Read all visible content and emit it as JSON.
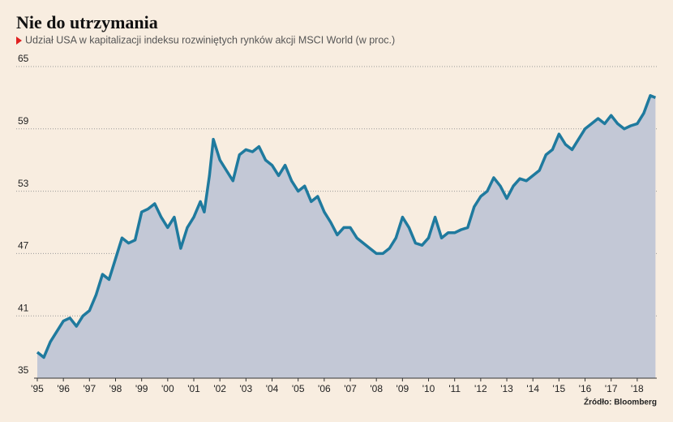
{
  "chart_data": {
    "type": "area",
    "title": "Nie do utrzymania",
    "subtitle": "Udział USA w kapitalizacji indeksu rozwiniętych rynków akcji MSCI World (w proc.)",
    "source": "Źródło: Bloomberg",
    "color": "#1f7a9e",
    "fill": "#c3c8d6",
    "grid": true,
    "x": [
      1995,
      1995.25,
      1995.5,
      1995.75,
      1996,
      1996.25,
      1996.5,
      1996.75,
      1997,
      1997.25,
      1997.5,
      1997.75,
      1998,
      1998.25,
      1998.5,
      1998.75,
      1999,
      1999.25,
      1999.5,
      1999.75,
      2000,
      2000.25,
      2000.5,
      2000.75,
      2001,
      2001.25,
      2001.4,
      2001.6,
      2001.75,
      2002,
      2002.25,
      2002.5,
      2002.75,
      2003,
      2003.25,
      2003.5,
      2003.75,
      2004,
      2004.25,
      2004.5,
      2004.75,
      2005,
      2005.25,
      2005.5,
      2005.75,
      2006,
      2006.25,
      2006.5,
      2006.75,
      2007,
      2007.25,
      2007.5,
      2007.75,
      2008,
      2008.25,
      2008.5,
      2008.75,
      2009,
      2009.25,
      2009.5,
      2009.75,
      2010,
      2010.25,
      2010.5,
      2010.75,
      2011,
      2011.25,
      2011.5,
      2011.75,
      2012,
      2012.25,
      2012.5,
      2012.75,
      2013,
      2013.25,
      2013.5,
      2013.75,
      2014,
      2014.25,
      2014.5,
      2014.75,
      2015,
      2015.25,
      2015.5,
      2015.75,
      2016,
      2016.25,
      2016.5,
      2016.75,
      2017,
      2017.25,
      2017.5,
      2017.75,
      2018,
      2018.25,
      2018.5,
      2018.7
    ],
    "values": [
      37.5,
      37,
      38.5,
      39.5,
      40.5,
      40.8,
      40,
      41,
      41.5,
      43,
      45,
      44.5,
      46.5,
      48.5,
      48,
      48.3,
      51,
      51.3,
      51.8,
      50.5,
      49.5,
      50.5,
      47.5,
      49.5,
      50.5,
      52,
      51,
      54.5,
      58,
      56,
      55,
      54,
      56.5,
      57,
      56.8,
      57.3,
      56,
      55.5,
      54.5,
      55.5,
      54,
      53,
      53.5,
      52,
      52.5,
      51,
      50,
      48.8,
      49.5,
      49.5,
      48.5,
      48,
      47.5,
      47,
      47,
      47.5,
      48.5,
      50.5,
      49.5,
      48,
      47.8,
      48.5,
      50.5,
      48.5,
      49,
      49,
      49.3,
      49.5,
      51.5,
      52.5,
      53,
      54.3,
      53.5,
      52.3,
      53.5,
      54.2,
      54,
      54.5,
      55,
      56.5,
      57,
      58.5,
      57.5,
      57,
      58,
      59,
      59.5,
      60,
      59.5,
      60.3,
      59.5,
      59,
      59.3,
      59.5,
      60.5,
      62.2,
      62
    ],
    "xlim": [
      1995,
      2018.75
    ],
    "ylim": [
      35,
      65
    ],
    "yticks": [
      35,
      41,
      47,
      53,
      59,
      65
    ],
    "xticks": [
      {
        "value": 1995,
        "label": "'95"
      },
      {
        "value": 1996,
        "label": "'96"
      },
      {
        "value": 1997,
        "label": "'97"
      },
      {
        "value": 1998,
        "label": "'98"
      },
      {
        "value": 1999,
        "label": "'99"
      },
      {
        "value": 2000,
        "label": "'00"
      },
      {
        "value": 2001,
        "label": "'01"
      },
      {
        "value": 2002,
        "label": "'02"
      },
      {
        "value": 2003,
        "label": "'03"
      },
      {
        "value": 2004,
        "label": "'04"
      },
      {
        "value": 2005,
        "label": "'05"
      },
      {
        "value": 2006,
        "label": "'06"
      },
      {
        "value": 2007,
        "label": "'07"
      },
      {
        "value": 2008,
        "label": "'08"
      },
      {
        "value": 2009,
        "label": "'09"
      },
      {
        "value": 2010,
        "label": "'10"
      },
      {
        "value": 2011,
        "label": "'11"
      },
      {
        "value": 2012,
        "label": "'12"
      },
      {
        "value": 2013,
        "label": "'13"
      },
      {
        "value": 2014,
        "label": "'14"
      },
      {
        "value": 2015,
        "label": "'15"
      },
      {
        "value": 2016,
        "label": "'16"
      },
      {
        "value": 2017,
        "label": "'17"
      },
      {
        "value": 2018,
        "label": "'18"
      }
    ]
  }
}
